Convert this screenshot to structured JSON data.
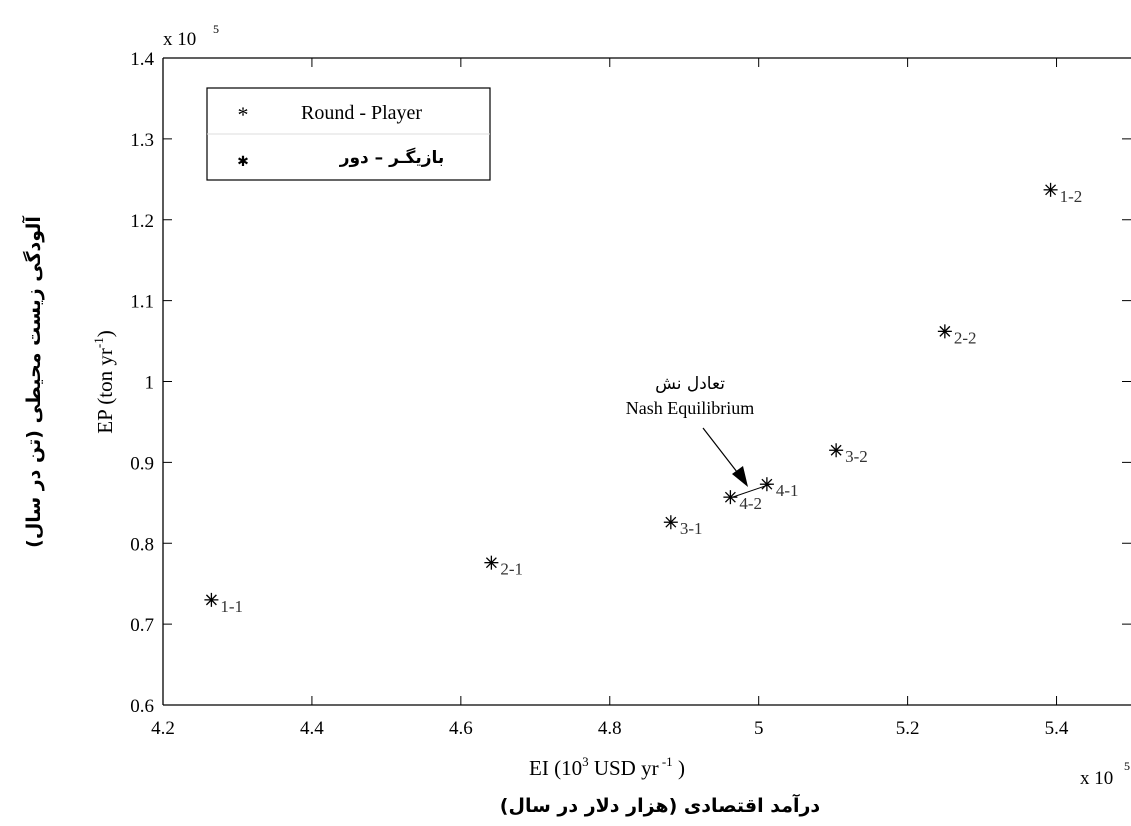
{
  "chart_data": {
    "type": "scatter",
    "x_multiplier": "x 10",
    "x_multiplier_exp": "5",
    "y_multiplier": "x 10",
    "y_multiplier_exp": "5",
    "xlim": [
      4.2,
      5.5
    ],
    "ylim": [
      0.6,
      1.4
    ],
    "x_ticks": [
      4.2,
      4.4,
      4.6,
      4.8,
      5,
      5.2,
      5.4
    ],
    "y_ticks": [
      0.6,
      0.7,
      0.8,
      0.9,
      1,
      1.1,
      1.2,
      1.3,
      1.4
    ],
    "xlabel": "EI (10",
    "xlabel_sup": "3",
    "xlabel_rest": " USD yr",
    "xlabel_sup2": " -1",
    "xlabel_end": " )",
    "xlabel_fa": "درآمد اقتصادی (هزار دلار در سال)",
    "ylabel": "EP (ton yr",
    "ylabel_sup": "-1",
    "ylabel_end": ")",
    "ylabel_fa": "آلودگی زیست محیطی (تن در سال)",
    "legend": {
      "entries": [
        {
          "marker": "*",
          "label": "Round - Player"
        },
        {
          "marker": "✱",
          "label": "بازیگـر – دور"
        }
      ],
      "position": "top-left"
    },
    "points": [
      {
        "label": "1-1",
        "x": 4.265,
        "y": 0.73
      },
      {
        "label": "2-1",
        "x": 4.641,
        "y": 0.776
      },
      {
        "label": "3-1",
        "x": 4.882,
        "y": 0.826
      },
      {
        "label": "4-2",
        "x": 4.962,
        "y": 0.857
      },
      {
        "label": "4-1",
        "x": 5.011,
        "y": 0.873
      },
      {
        "label": "3-2",
        "x": 5.104,
        "y": 0.915
      },
      {
        "label": "2-2",
        "x": 5.25,
        "y": 1.062
      },
      {
        "label": "1-2",
        "x": 5.392,
        "y": 1.237
      }
    ],
    "annotation": {
      "text_fa": "تعادل نش",
      "text_en": "Nash Equilibrium"
    }
  }
}
